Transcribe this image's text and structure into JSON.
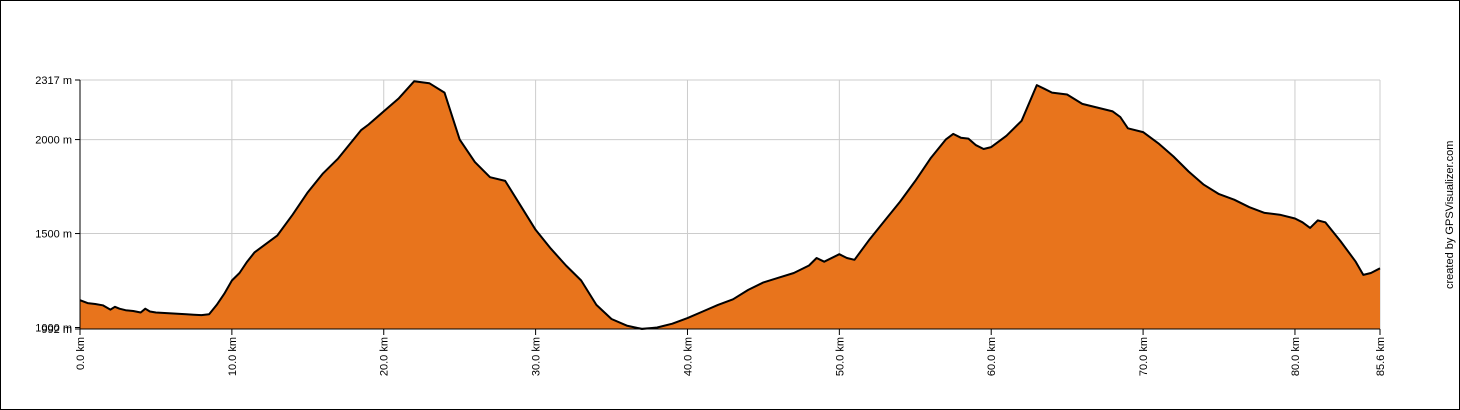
{
  "chart_data": {
    "type": "area",
    "title": "",
    "xlabel": "",
    "ylabel": "",
    "xlim": [
      0,
      85.6
    ],
    "ylim": [
      992,
      2317
    ],
    "y_ticks": [
      {
        "value": 2317,
        "label": "2317 m"
      },
      {
        "value": 2000,
        "label": "2000 m"
      },
      {
        "value": 1500,
        "label": "1500 m"
      },
      {
        "value": 1000,
        "label": "1000 m"
      },
      {
        "value": 992,
        "label": "992 m"
      }
    ],
    "x_ticks": [
      {
        "value": 0,
        "label": "0.0 km"
      },
      {
        "value": 10,
        "label": "10.0 km"
      },
      {
        "value": 20,
        "label": "20.0 km"
      },
      {
        "value": 30,
        "label": "30.0 km"
      },
      {
        "value": 40,
        "label": "40.0 km"
      },
      {
        "value": 50,
        "label": "50.0 km"
      },
      {
        "value": 60,
        "label": "60.0 km"
      },
      {
        "value": 70,
        "label": "70.0 km"
      },
      {
        "value": 80,
        "label": "80.0 km"
      },
      {
        "value": 85.6,
        "label": "85.6 km"
      }
    ],
    "grid": true,
    "fill_color": "#e8741c",
    "line_color": "#000000",
    "grid_color": "#cccccc",
    "series": [
      {
        "x": [
          0,
          0.5,
          1,
          1.5,
          2,
          2.3,
          2.6,
          3,
          3.5,
          4,
          4.3,
          4.6,
          5,
          6,
          7,
          7.5,
          8,
          8.5,
          9,
          9.5,
          10,
          10.5,
          11,
          11.5,
          12,
          13,
          14,
          15,
          16,
          17,
          18,
          18.5,
          19,
          20,
          21,
          22,
          23,
          24,
          25,
          26,
          27,
          28,
          29,
          30,
          31,
          32,
          33,
          34,
          35,
          36,
          37,
          38,
          39,
          40,
          41,
          42,
          43,
          44,
          45,
          46,
          47,
          48,
          48.5,
          49,
          50,
          50.5,
          51,
          52,
          53,
          54,
          55,
          56,
          57,
          57.5,
          58,
          58.5,
          59,
          59.5,
          60,
          61,
          62,
          63,
          63.5,
          64,
          65,
          66,
          67,
          68,
          68.5,
          69,
          70,
          71,
          72,
          73,
          74,
          75,
          76,
          77,
          78,
          79,
          80,
          80.5,
          81,
          81.5,
          82,
          83,
          84,
          84.5,
          85,
          85.6
        ],
        "y": [
          1145,
          1130,
          1125,
          1118,
          1095,
          1110,
          1100,
          1092,
          1088,
          1080,
          1100,
          1085,
          1080,
          1075,
          1070,
          1068,
          1066,
          1070,
          1120,
          1180,
          1250,
          1290,
          1350,
          1400,
          1430,
          1490,
          1600,
          1720,
          1820,
          1900,
          2000,
          2050,
          2080,
          2150,
          2220,
          2310,
          2300,
          2250,
          2000,
          1880,
          1800,
          1780,
          1650,
          1520,
          1420,
          1330,
          1250,
          1120,
          1045,
          1010,
          992,
          1000,
          1020,
          1050,
          1085,
          1120,
          1150,
          1200,
          1240,
          1265,
          1290,
          1330,
          1370,
          1350,
          1390,
          1370,
          1360,
          1470,
          1570,
          1670,
          1780,
          1900,
          2000,
          2030,
          2010,
          2005,
          1970,
          1950,
          1960,
          2020,
          2100,
          2290,
          2270,
          2250,
          2240,
          2190,
          2170,
          2150,
          2120,
          2060,
          2040,
          1980,
          1910,
          1830,
          1760,
          1710,
          1680,
          1640,
          1610,
          1600,
          1580,
          1560,
          1530,
          1570,
          1560,
          1460,
          1350,
          1280,
          1290,
          1315
        ]
      }
    ]
  },
  "credit": "created by GPSVisualizer.com"
}
